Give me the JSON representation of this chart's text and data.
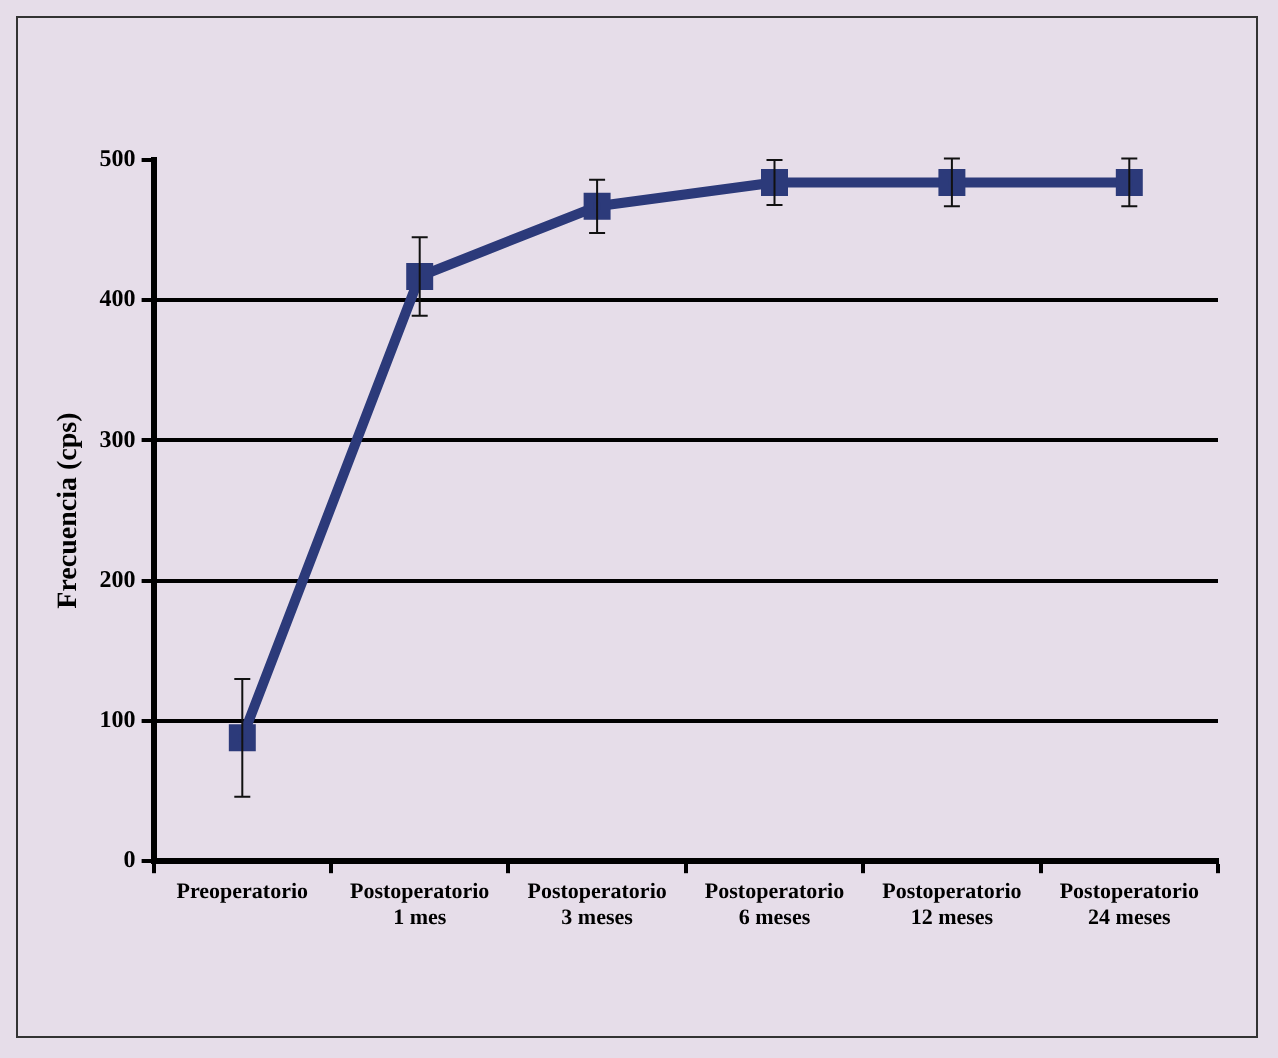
{
  "chart_data": {
    "type": "line",
    "ylabel": "Frecuencia (cps)",
    "categories": [
      "Preoperatorio",
      "Postoperatorio 1 mes",
      "Postoperatorio 3 meses",
      "Postoperatorio 6 meses",
      "Postoperatorio 12 meses",
      "Postoperatorio 24 meses"
    ],
    "series": [
      {
        "color": "#2c3a7a",
        "values": [
          88,
          417,
          467,
          484,
          484,
          484
        ],
        "errors": [
          42,
          28,
          19,
          16,
          17,
          17
        ]
      }
    ],
    "ylim": [
      0,
      500
    ],
    "yticks": [
      0,
      100,
      200,
      300,
      400,
      500
    ],
    "grid": "y",
    "legend": false,
    "marker": "square",
    "line_style": "solid"
  }
}
